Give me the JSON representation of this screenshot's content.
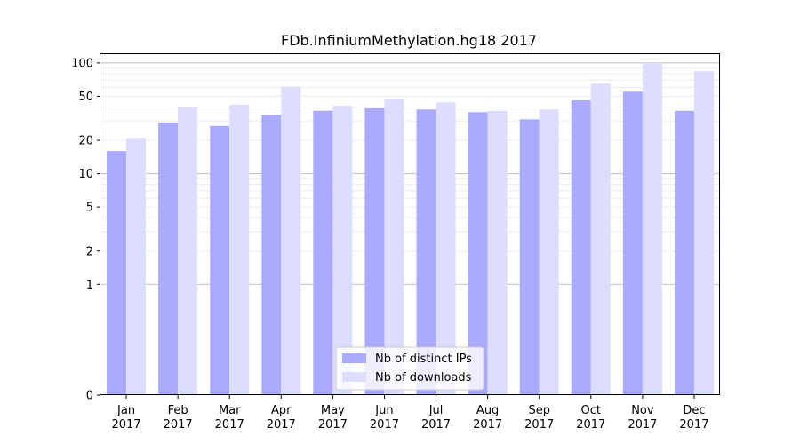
{
  "chart_data": {
    "type": "bar",
    "title": "FDb.InfiniumMethylation.hg18 2017",
    "xlabel": "",
    "ylabel": "",
    "yscale": "symlog",
    "ylim": [
      0,
      120
    ],
    "yticks": [
      0,
      1,
      2,
      5,
      10,
      20,
      50,
      100
    ],
    "categories": [
      [
        "Jan",
        "2017"
      ],
      [
        "Feb",
        "2017"
      ],
      [
        "Mar",
        "2017"
      ],
      [
        "Apr",
        "2017"
      ],
      [
        "May",
        "2017"
      ],
      [
        "Jun",
        "2017"
      ],
      [
        "Jul",
        "2017"
      ],
      [
        "Aug",
        "2017"
      ],
      [
        "Sep",
        "2017"
      ],
      [
        "Oct",
        "2017"
      ],
      [
        "Nov",
        "2017"
      ],
      [
        "Dec",
        "2017"
      ]
    ],
    "series": [
      {
        "name": "Nb of distinct IPs",
        "color": "#aaaaff",
        "values": [
          16,
          29,
          27,
          34,
          37,
          39,
          38,
          36,
          31,
          46,
          55,
          37
        ]
      },
      {
        "name": "Nb of downloads",
        "color": "#ddddff",
        "values": [
          21,
          40,
          42,
          61,
          41,
          47,
          44,
          37,
          38,
          65,
          100,
          84
        ]
      }
    ],
    "grid": true,
    "legend_position": "bottom-center"
  }
}
